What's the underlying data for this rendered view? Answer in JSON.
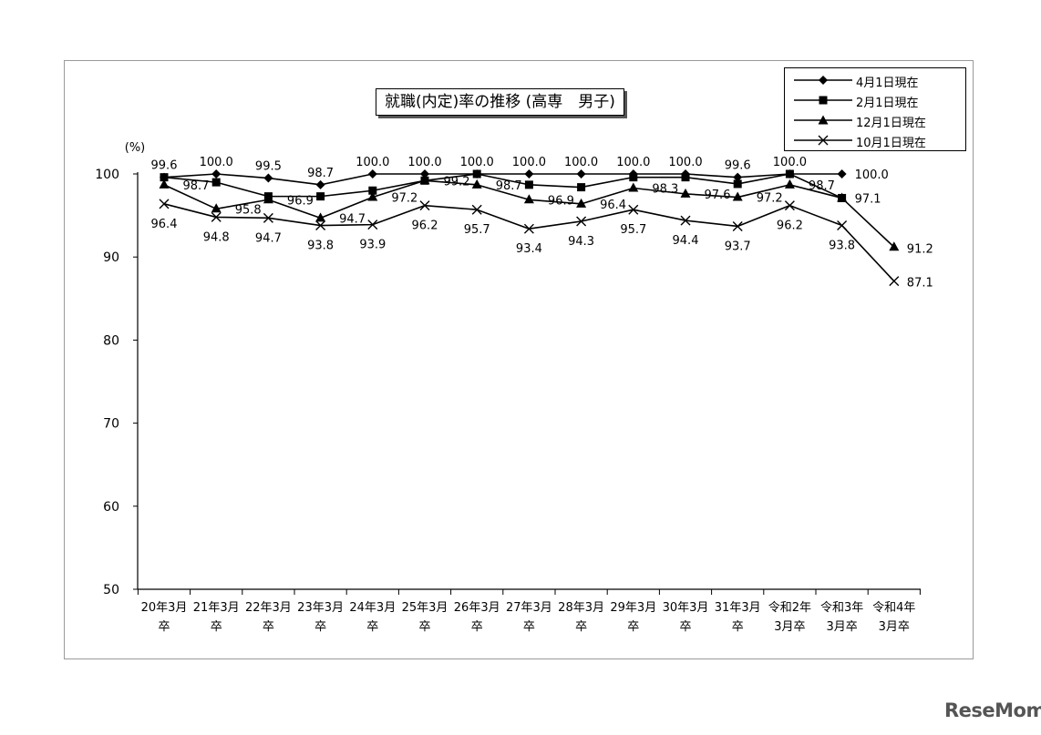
{
  "chart_data": {
    "type": "line",
    "title": "就職(内定)率の推移 (高専　男子)",
    "ylabel": "(%)",
    "ylim": [
      50,
      100
    ],
    "yticks": [
      50,
      60,
      70,
      80,
      90,
      100
    ],
    "categories": [
      [
        "20年3月",
        "卒"
      ],
      [
        "21年3月",
        "卒"
      ],
      [
        "22年3月",
        "卒"
      ],
      [
        "23年3月",
        "卒"
      ],
      [
        "24年3月",
        "卒"
      ],
      [
        "25年3月",
        "卒"
      ],
      [
        "26年3月",
        "卒"
      ],
      [
        "27年3月",
        "卒"
      ],
      [
        "28年3月",
        "卒"
      ],
      [
        "29年3月",
        "卒"
      ],
      [
        "30年3月",
        "卒"
      ],
      [
        "31年3月",
        "卒"
      ],
      [
        "令和2年",
        "3月卒"
      ],
      [
        "令和3年",
        "3月卒"
      ],
      [
        "令和4年",
        "3月卒"
      ]
    ],
    "series": [
      {
        "name": "4月1日現在",
        "marker": "diamond",
        "values": [
          99.6,
          100.0,
          99.5,
          98.7,
          100.0,
          100.0,
          100.0,
          100.0,
          100.0,
          100.0,
          100.0,
          99.6,
          100.0,
          100.0,
          null
        ]
      },
      {
        "name": "2月1日現在",
        "marker": "square",
        "values": [
          99.6,
          99.0,
          97.3,
          97.3,
          98.0,
          99.2,
          100.0,
          98.7,
          98.4,
          99.6,
          99.6,
          98.8,
          100.0,
          97.1,
          null
        ]
      },
      {
        "name": "12月1日現在",
        "marker": "triangle",
        "values": [
          98.7,
          95.8,
          96.9,
          94.7,
          97.2,
          99.2,
          98.7,
          96.9,
          96.4,
          98.3,
          97.6,
          97.2,
          98.7,
          97.1,
          91.2
        ]
      },
      {
        "name": "10月1日現在",
        "marker": "x",
        "values": [
          96.4,
          94.8,
          94.7,
          93.8,
          93.9,
          96.2,
          95.7,
          93.4,
          94.3,
          95.7,
          94.4,
          93.7,
          96.2,
          93.8,
          87.1
        ]
      }
    ],
    "data_labels": [
      {
        "text": "99.6",
        "series": 0,
        "index": 0
      },
      {
        "text": "100.0",
        "series": 0,
        "index": 1
      },
      {
        "text": "99.5",
        "series": 0,
        "index": 2
      },
      {
        "text": "98.7",
        "series": 0,
        "index": 3
      },
      {
        "text": "100.0",
        "series": 0,
        "index": 4
      },
      {
        "text": "100.0",
        "series": 0,
        "index": 5
      },
      {
        "text": "100.0",
        "series": 0,
        "index": 6
      },
      {
        "text": "100.0",
        "series": 0,
        "index": 7
      },
      {
        "text": "100.0",
        "series": 0,
        "index": 8
      },
      {
        "text": "100.0",
        "series": 0,
        "index": 9
      },
      {
        "text": "100.0",
        "series": 0,
        "index": 10
      },
      {
        "text": "99.6",
        "series": 0,
        "index": 11
      },
      {
        "text": "100.0",
        "series": 0,
        "index": 12
      },
      {
        "text": "100.0",
        "series": 0,
        "index": 13
      },
      {
        "text": "98.7",
        "series": 2,
        "index": 0
      },
      {
        "text": "95.8",
        "series": 2,
        "index": 1
      },
      {
        "text": "96.9",
        "series": 2,
        "index": 2
      },
      {
        "text": "94.7",
        "series": 2,
        "index": 3
      },
      {
        "text": "97.2",
        "series": 2,
        "index": 4
      },
      {
        "text": "99.2",
        "series": 2,
        "index": 5
      },
      {
        "text": "98.7",
        "series": 2,
        "index": 6
      },
      {
        "text": "96.9",
        "series": 2,
        "index": 7
      },
      {
        "text": "96.4",
        "series": 2,
        "index": 8
      },
      {
        "text": "98.3",
        "series": 2,
        "index": 9
      },
      {
        "text": "97.6",
        "series": 2,
        "index": 10
      },
      {
        "text": "97.2",
        "series": 2,
        "index": 11
      },
      {
        "text": "98.7",
        "series": 2,
        "index": 12
      },
      {
        "text": "97.1",
        "series": 1,
        "index": 13
      },
      {
        "text": "91.2",
        "series": 2,
        "index": 14
      },
      {
        "text": "96.4",
        "series": 3,
        "index": 0
      },
      {
        "text": "94.8",
        "series": 3,
        "index": 1
      },
      {
        "text": "94.7",
        "series": 3,
        "index": 2
      },
      {
        "text": "93.8",
        "series": 3,
        "index": 3
      },
      {
        "text": "93.9",
        "series": 3,
        "index": 4
      },
      {
        "text": "96.2",
        "series": 3,
        "index": 5
      },
      {
        "text": "95.7",
        "series": 3,
        "index": 6
      },
      {
        "text": "93.4",
        "series": 3,
        "index": 7
      },
      {
        "text": "94.3",
        "series": 3,
        "index": 8
      },
      {
        "text": "95.7",
        "series": 3,
        "index": 9
      },
      {
        "text": "94.4",
        "series": 3,
        "index": 10
      },
      {
        "text": "93.7",
        "series": 3,
        "index": 11
      },
      {
        "text": "96.2",
        "series": 3,
        "index": 12
      },
      {
        "text": "93.8",
        "series": 3,
        "index": 13
      },
      {
        "text": "87.1",
        "series": 3,
        "index": 14
      }
    ],
    "legend_position": "top-right",
    "grid": false,
    "line_color": "#000000"
  },
  "watermark": "ReseMom"
}
